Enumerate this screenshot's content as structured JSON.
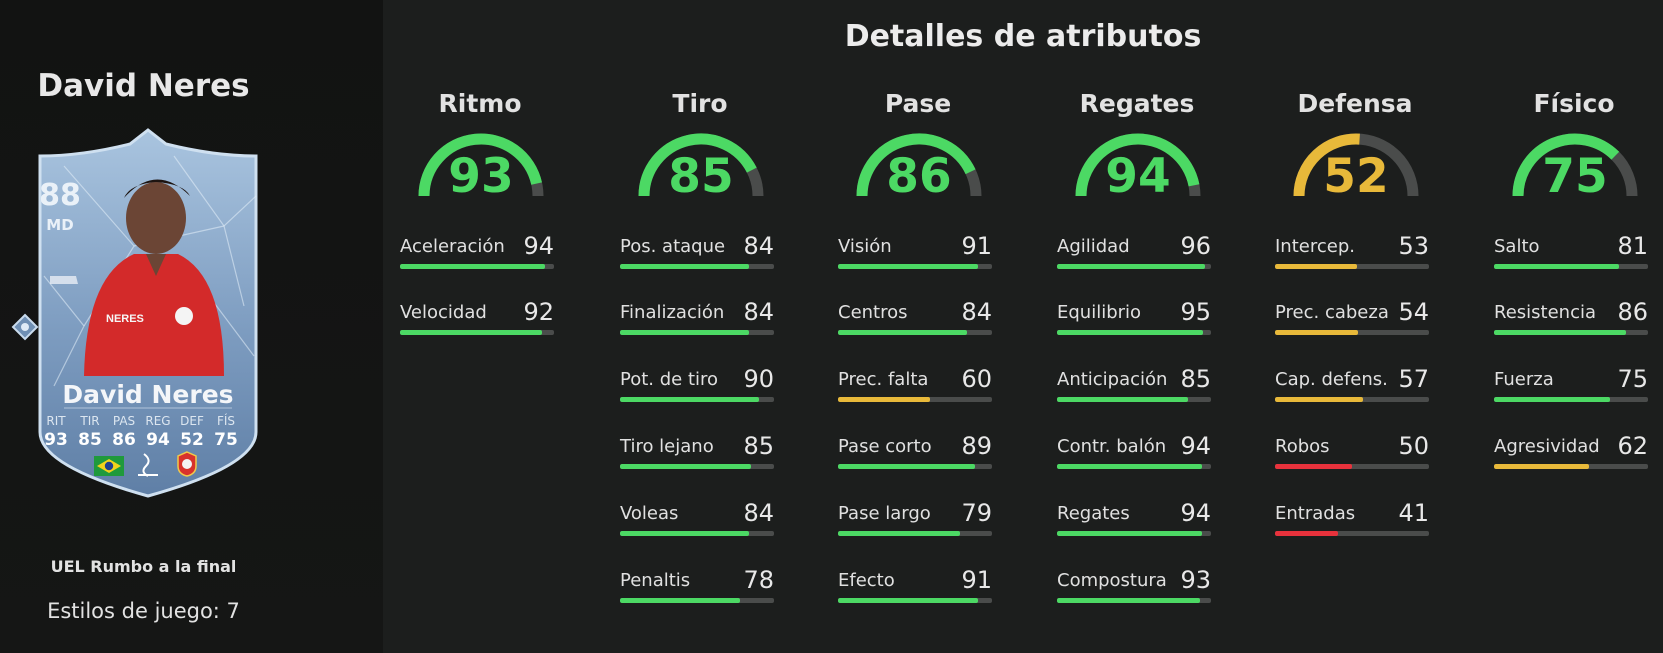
{
  "colors": {
    "green": "#4cd964",
    "yellow": "#e8b93a",
    "red": "#e8323c",
    "track": "#4a4c4b"
  },
  "player": {
    "name": "David Neres",
    "card": {
      "rating": "88",
      "position": "MD",
      "name": "David Neres",
      "stats": [
        {
          "label": "RIT",
          "value": "93"
        },
        {
          "label": "TIR",
          "value": "85"
        },
        {
          "label": "PAS",
          "value": "86"
        },
        {
          "label": "REG",
          "value": "94"
        },
        {
          "label": "DEF",
          "value": "52"
        },
        {
          "label": "FÍS",
          "value": "75"
        }
      ],
      "icons": [
        "rarity-diamond-icon",
        "brazil-flag-icon",
        "liga-portugal-icon",
        "benfica-crest-icon",
        "boot-icon"
      ]
    },
    "promo": "UEL Rumbo a la final",
    "playstyles": "Estilos de juego: 7"
  },
  "title": "Detalles de atributos",
  "categories": [
    {
      "name": "Ritmo",
      "value": 93,
      "color": "green",
      "attributes": [
        {
          "name": "Aceleración",
          "value": 94,
          "color": "green"
        },
        {
          "name": "Velocidad",
          "value": 92,
          "color": "green"
        }
      ]
    },
    {
      "name": "Tiro",
      "value": 85,
      "color": "green",
      "attributes": [
        {
          "name": "Pos. ataque",
          "value": 84,
          "color": "green"
        },
        {
          "name": "Finalización",
          "value": 84,
          "color": "green"
        },
        {
          "name": "Pot. de tiro",
          "value": 90,
          "color": "green"
        },
        {
          "name": "Tiro lejano",
          "value": 85,
          "color": "green"
        },
        {
          "name": "Voleas",
          "value": 84,
          "color": "green"
        },
        {
          "name": "Penaltis",
          "value": 78,
          "color": "green"
        }
      ]
    },
    {
      "name": "Pase",
      "value": 86,
      "color": "green",
      "attributes": [
        {
          "name": "Visión",
          "value": 91,
          "color": "green"
        },
        {
          "name": "Centros",
          "value": 84,
          "color": "green"
        },
        {
          "name": "Prec. falta",
          "value": 60,
          "color": "yellow"
        },
        {
          "name": "Pase corto",
          "value": 89,
          "color": "green"
        },
        {
          "name": "Pase largo",
          "value": 79,
          "color": "green"
        },
        {
          "name": "Efecto",
          "value": 91,
          "color": "green"
        }
      ]
    },
    {
      "name": "Regates",
      "value": 94,
      "color": "green",
      "attributes": [
        {
          "name": "Agilidad",
          "value": 96,
          "color": "green"
        },
        {
          "name": "Equilibrio",
          "value": 95,
          "color": "green"
        },
        {
          "name": "Anticipación",
          "value": 85,
          "color": "green"
        },
        {
          "name": "Contr. balón",
          "value": 94,
          "color": "green"
        },
        {
          "name": "Regates",
          "value": 94,
          "color": "green"
        },
        {
          "name": "Compostura",
          "value": 93,
          "color": "green"
        }
      ]
    },
    {
      "name": "Defensa",
      "value": 52,
      "color": "yellow",
      "attributes": [
        {
          "name": "Intercep.",
          "value": 53,
          "color": "yellow"
        },
        {
          "name": "Prec. cabeza",
          "value": 54,
          "color": "yellow"
        },
        {
          "name": "Cap. defens.",
          "value": 57,
          "color": "yellow"
        },
        {
          "name": "Robos",
          "value": 50,
          "color": "red"
        },
        {
          "name": "Entradas",
          "value": 41,
          "color": "red"
        }
      ]
    },
    {
      "name": "Físico",
      "value": 75,
      "color": "green",
      "attributes": [
        {
          "name": "Salto",
          "value": 81,
          "color": "green"
        },
        {
          "name": "Resistencia",
          "value": 86,
          "color": "green"
        },
        {
          "name": "Fuerza",
          "value": 75,
          "color": "green"
        },
        {
          "name": "Agresividad",
          "value": 62,
          "color": "yellow"
        }
      ]
    }
  ]
}
